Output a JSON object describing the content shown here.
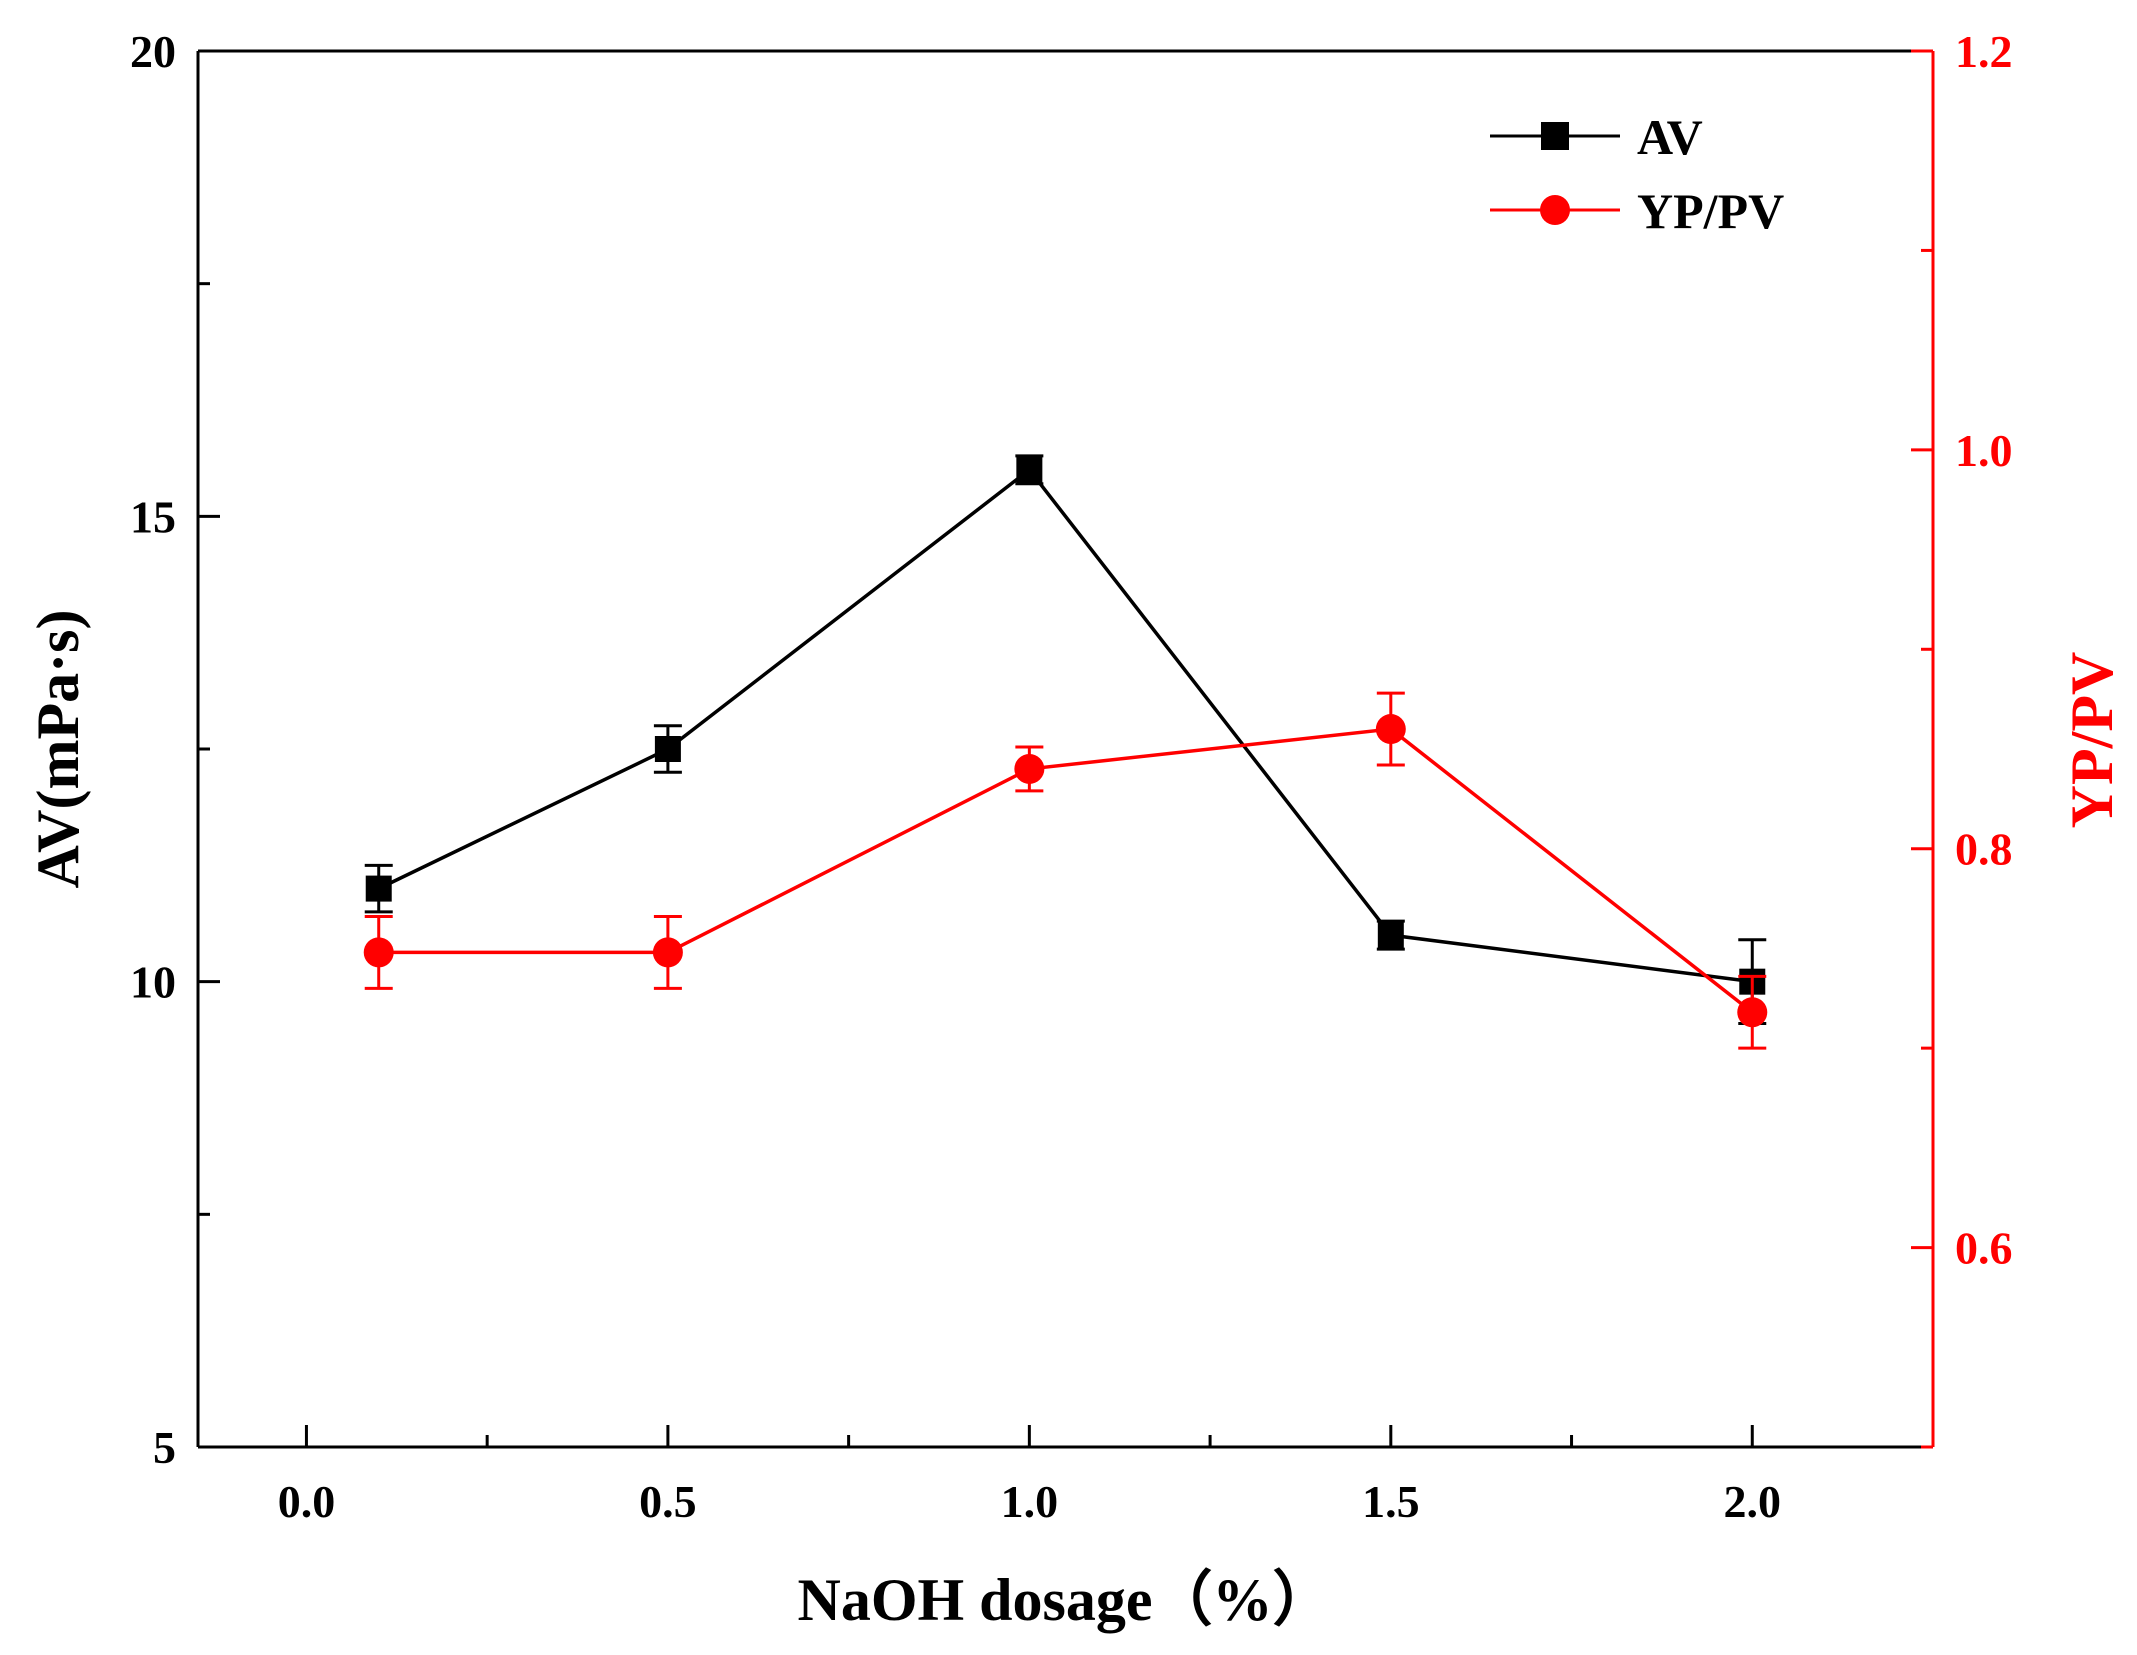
{
  "chart_data": {
    "type": "line",
    "title": "",
    "xlabel": "NaOH dosage（%）",
    "ylabel": "AV(mPa·s)",
    "y2label": "YP/PV",
    "xlim": [
      -0.15,
      2.25
    ],
    "ylim": [
      5,
      20
    ],
    "y2lim": [
      0.5,
      1.2
    ],
    "x_ticks": [
      0.0,
      0.5,
      1.0,
      1.5,
      2.0
    ],
    "x_tick_labels": [
      "0.0",
      "0.5",
      "1.0",
      "1.5",
      "2.0"
    ],
    "y_ticks": [
      5,
      10,
      15,
      20
    ],
    "y_tick_labels": [
      "5",
      "10",
      "15",
      "20"
    ],
    "y2_ticks": [
      0.6,
      0.8,
      1.0,
      1.2
    ],
    "y2_tick_labels": [
      "0.6",
      "0.8",
      "1.0",
      "1.2"
    ],
    "colors": {
      "AV": "#000000",
      "YP/PV": "#ff0000"
    },
    "legend": {
      "position": "top-right",
      "entries": [
        "AV",
        "YP/PV"
      ]
    },
    "series": [
      {
        "name": "AV",
        "axis": "left",
        "marker": "square",
        "x": [
          0.1,
          0.5,
          1.0,
          1.5,
          2.0
        ],
        "values": [
          11.0,
          12.5,
          15.5,
          10.5,
          10.0
        ],
        "errors": [
          0.25,
          0.25,
          0.15,
          0.15,
          0.45
        ]
      },
      {
        "name": "YP/PV",
        "axis": "right",
        "marker": "circle",
        "x": [
          0.1,
          0.5,
          1.0,
          1.5,
          2.0
        ],
        "values": [
          0.748,
          0.748,
          0.84,
          0.86,
          0.718
        ],
        "errors": [
          0.018,
          0.018,
          0.011,
          0.018,
          0.018
        ]
      }
    ]
  }
}
